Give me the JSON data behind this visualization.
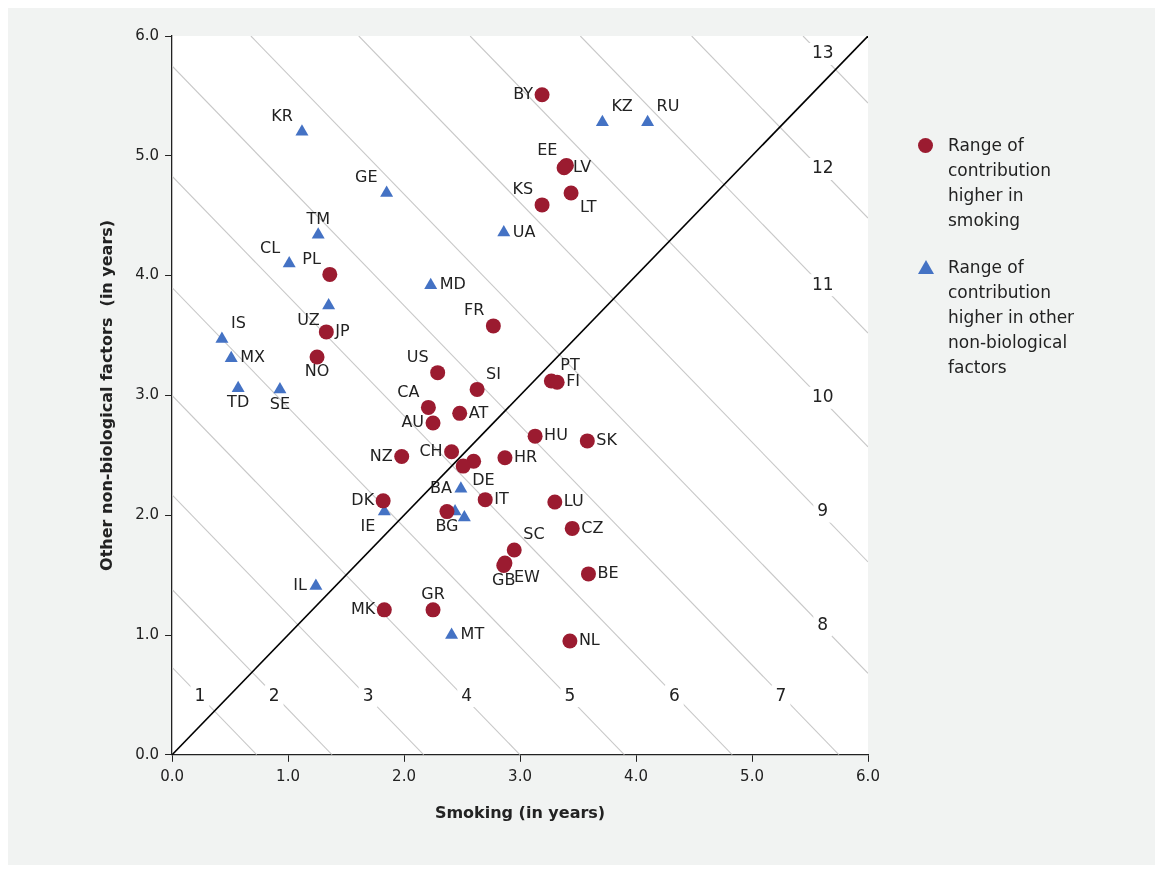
{
  "chart_data": {
    "type": "scatter",
    "xlabel": "Smoking (in years)",
    "ylabel": "Other non-biological factors  (in years)",
    "xlim": [
      0,
      6
    ],
    "ylim": [
      0,
      6
    ],
    "xticks": [
      {
        "value": 0,
        "label": "0.0"
      },
      {
        "value": 1,
        "label": "1.0"
      },
      {
        "value": 2,
        "label": "2.0"
      },
      {
        "value": 3,
        "label": "3.0"
      },
      {
        "value": 4,
        "label": "4.0"
      },
      {
        "value": 5,
        "label": "5.0"
      },
      {
        "value": 6,
        "label": "6.0"
      }
    ],
    "yticks": [
      {
        "value": 0,
        "label": "0.0"
      },
      {
        "value": 1,
        "label": "1.0"
      },
      {
        "value": 2,
        "label": "2.0"
      },
      {
        "value": 3,
        "label": "3.0"
      },
      {
        "value": 4,
        "label": "4.0"
      },
      {
        "value": 5,
        "label": "5.0"
      },
      {
        "value": 6,
        "label": "6.0"
      }
    ],
    "grid": false,
    "legend": "right",
    "series": [
      {
        "name": "Range of contribution higher in smoking",
        "type": "scatter",
        "marker": "circle",
        "color": "#9b1b30",
        "x": [
          3.19,
          3.4,
          3.38,
          3.44,
          3.19,
          1.36,
          1.33,
          1.25,
          2.77,
          2.29,
          2.63,
          3.27,
          3.32,
          2.21,
          2.48,
          2.25,
          3.13,
          3.58,
          1.98,
          2.41,
          2.6,
          2.51,
          2.87,
          1.82,
          2.7,
          3.3,
          2.37,
          3.45,
          2.95,
          2.87,
          2.86,
          3.59,
          1.83,
          2.25,
          3.43
        ],
        "values": [
          5.51,
          4.92,
          4.9,
          4.69,
          4.59,
          4.01,
          3.53,
          3.32,
          3.58,
          3.19,
          3.05,
          3.12,
          3.11,
          2.9,
          2.85,
          2.77,
          2.66,
          2.62,
          2.49,
          2.53,
          2.45,
          2.41,
          2.48,
          2.12,
          2.13,
          2.11,
          2.03,
          1.89,
          1.71,
          1.6,
          1.58,
          1.51,
          1.21,
          1.21,
          0.95
        ],
        "value_labels": [
          "BY",
          "EE",
          "LV",
          "LT",
          "KS",
          "PL",
          "JP",
          "NO",
          "FR",
          "US",
          "SI",
          "PT",
          "FI",
          "CA",
          "AT",
          "AU",
          "HU",
          "SK",
          "NZ",
          "CH",
          null,
          "DE",
          "HR",
          "DK",
          "IT",
          "LU",
          "BG",
          "CZ",
          "SC",
          "EW",
          "GB",
          "BE",
          "MK",
          "GR",
          "NL"
        ]
      },
      {
        "name": "Range of contribution higher in other non-biological factors",
        "type": "scatter",
        "marker": "triangle",
        "color": "#4472c4",
        "x": [
          1.12,
          3.71,
          4.1,
          1.85,
          1.26,
          1.01,
          2.86,
          2.23,
          1.35,
          0.43,
          0.51,
          0.57,
          0.93,
          2.49,
          1.83,
          2.44,
          2.52,
          1.24,
          2.41
        ],
        "values": [
          5.2,
          5.28,
          5.28,
          4.69,
          4.34,
          4.1,
          4.36,
          3.92,
          3.75,
          3.47,
          3.31,
          3.06,
          3.05,
          2.22,
          2.03,
          2.03,
          1.98,
          1.41,
          1.0
        ],
        "value_labels": [
          "KR",
          "KZ",
          "RU",
          "GE",
          "TM",
          "CL",
          "UA",
          "MD",
          "UZ",
          "IS",
          "MX",
          "TD",
          "SE",
          "BA",
          "IE",
          null,
          null,
          "IL",
          "MT"
        ]
      },
      {
        "type": "line",
        "color": "#000000",
        "x": [
          0,
          6
        ],
        "values": [
          0,
          6
        ]
      },
      {
        "type": "line",
        "color": "#c8c8c8",
        "x": [
          0,
          0.73
        ],
        "values": [
          0.73,
          0
        ]
      },
      {
        "type": "line",
        "color": "#c8c8c8",
        "x": [
          0,
          1.38
        ],
        "values": [
          1.38,
          0
        ]
      },
      {
        "type": "line",
        "color": "#c8c8c8",
        "x": [
          0,
          2.17
        ],
        "values": [
          2.17,
          0
        ]
      },
      {
        "type": "line",
        "color": "#c8c8c8",
        "x": [
          0,
          3.0
        ],
        "values": [
          3.0,
          0
        ]
      },
      {
        "type": "line",
        "color": "#c8c8c8",
        "x": [
          0,
          3.9
        ],
        "values": [
          3.9,
          0
        ]
      },
      {
        "type": "line",
        "color": "#c8c8c8",
        "x": [
          0,
          4.83
        ],
        "values": [
          4.83,
          0
        ]
      },
      {
        "type": "line",
        "color": "#c8c8c8",
        "x": [
          0,
          5.75
        ],
        "values": [
          5.75,
          0
        ]
      },
      {
        "type": "line",
        "color": "#c8c8c8",
        "x": [
          0.68,
          6
        ],
        "values": [
          6,
          0.68
        ]
      },
      {
        "type": "line",
        "color": "#c8c8c8",
        "x": [
          1.61,
          6
        ],
        "values": [
          6,
          1.61
        ]
      },
      {
        "type": "line",
        "color": "#c8c8c8",
        "x": [
          2.57,
          6
        ],
        "values": [
          6,
          2.57
        ]
      },
      {
        "type": "line",
        "color": "#c8c8c8",
        "x": [
          3.52,
          6
        ],
        "values": [
          6,
          3.52
        ]
      },
      {
        "type": "line",
        "color": "#c8c8c8",
        "x": [
          4.48,
          6
        ],
        "values": [
          6,
          4.48
        ]
      },
      {
        "type": "line",
        "color": "#c8c8c8",
        "x": [
          5.44,
          6
        ],
        "values": [
          6,
          5.44
        ]
      }
    ],
    "annotations": [
      {
        "text": "1",
        "x": 0.24,
        "y": 0.49
      },
      {
        "text": "2",
        "x": 0.88,
        "y": 0.49
      },
      {
        "text": "3",
        "x": 1.69,
        "y": 0.49
      },
      {
        "text": "4",
        "x": 2.54,
        "y": 0.49
      },
      {
        "text": "5",
        "x": 3.43,
        "y": 0.49
      },
      {
        "text": "6",
        "x": 4.33,
        "y": 0.49
      },
      {
        "text": "7",
        "x": 5.25,
        "y": 0.49
      },
      {
        "text": "8",
        "x": 5.61,
        "y": 1.08
      },
      {
        "text": "9",
        "x": 5.61,
        "y": 2.03
      },
      {
        "text": "10",
        "x": 5.61,
        "y": 2.98
      },
      {
        "text": "11",
        "x": 5.61,
        "y": 3.92
      },
      {
        "text": "12",
        "x": 5.61,
        "y": 4.89
      },
      {
        "text": "13",
        "x": 5.61,
        "y": 5.85
      }
    ]
  }
}
